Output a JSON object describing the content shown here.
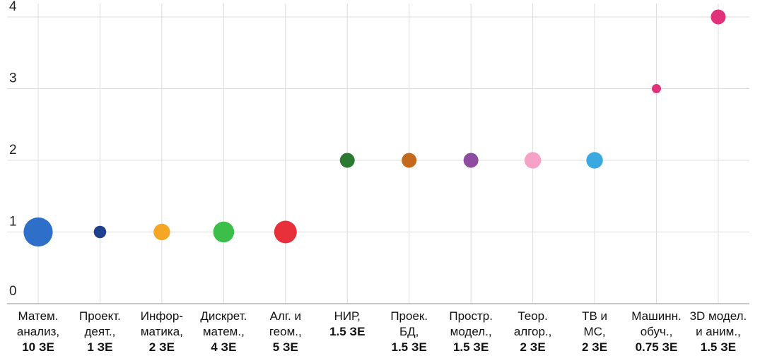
{
  "chart_data": {
    "type": "scatter",
    "title": "",
    "xlabel": "",
    "ylabel": "",
    "ylim": [
      0,
      4
    ],
    "yticks": [
      0,
      1,
      2,
      3,
      4
    ],
    "grid": true,
    "categories": [
      {
        "lines": [
          "Матем.",
          "анализ,"
        ],
        "credit": "10 ЗЕ"
      },
      {
        "lines": [
          "Проект.",
          "деят.,"
        ],
        "credit": "1 ЗЕ"
      },
      {
        "lines": [
          "Инфор-",
          "матика,"
        ],
        "credit": "2 ЗЕ"
      },
      {
        "lines": [
          "Дискрет.",
          "матем.,"
        ],
        "credit": "4 ЗЕ"
      },
      {
        "lines": [
          "Алг. и",
          "геом.,"
        ],
        "credit": "5 ЗЕ"
      },
      {
        "lines": [
          "НИР,"
        ],
        "credit": "1.5 ЗЕ"
      },
      {
        "lines": [
          "Проек.",
          "БД,"
        ],
        "credit": "1.5 ЗЕ"
      },
      {
        "lines": [
          "Простр.",
          "модел.,"
        ],
        "credit": "1.5 ЗЕ"
      },
      {
        "lines": [
          "Теор.",
          "алгор.,"
        ],
        "credit": "2 ЗЕ"
      },
      {
        "lines": [
          "ТВ и",
          "МС,"
        ],
        "credit": "2 ЗЕ"
      },
      {
        "lines": [
          "Машинн.",
          "обуч.,"
        ],
        "credit": "0.75 ЗЕ"
      },
      {
        "lines": [
          "3D модел.",
          "и аним.,"
        ],
        "credit": "1.5 ЗЕ"
      }
    ],
    "values": [
      1,
      1,
      1,
      1,
      1,
      2,
      2,
      2,
      2,
      2,
      3,
      4
    ],
    "colors": [
      "#2e6fc9",
      "#1f3f8f",
      "#f5a623",
      "#3bbf4a",
      "#e8303b",
      "#2b7a32",
      "#c46a1e",
      "#8e4ca0",
      "#f6a1c8",
      "#3aa9e0",
      "#e0317a",
      "#e0317a"
    ],
    "marker_sizes": [
      10,
      1,
      2,
      4,
      5,
      1.5,
      1.5,
      1.5,
      2,
      2,
      0.75,
      1.5
    ]
  }
}
